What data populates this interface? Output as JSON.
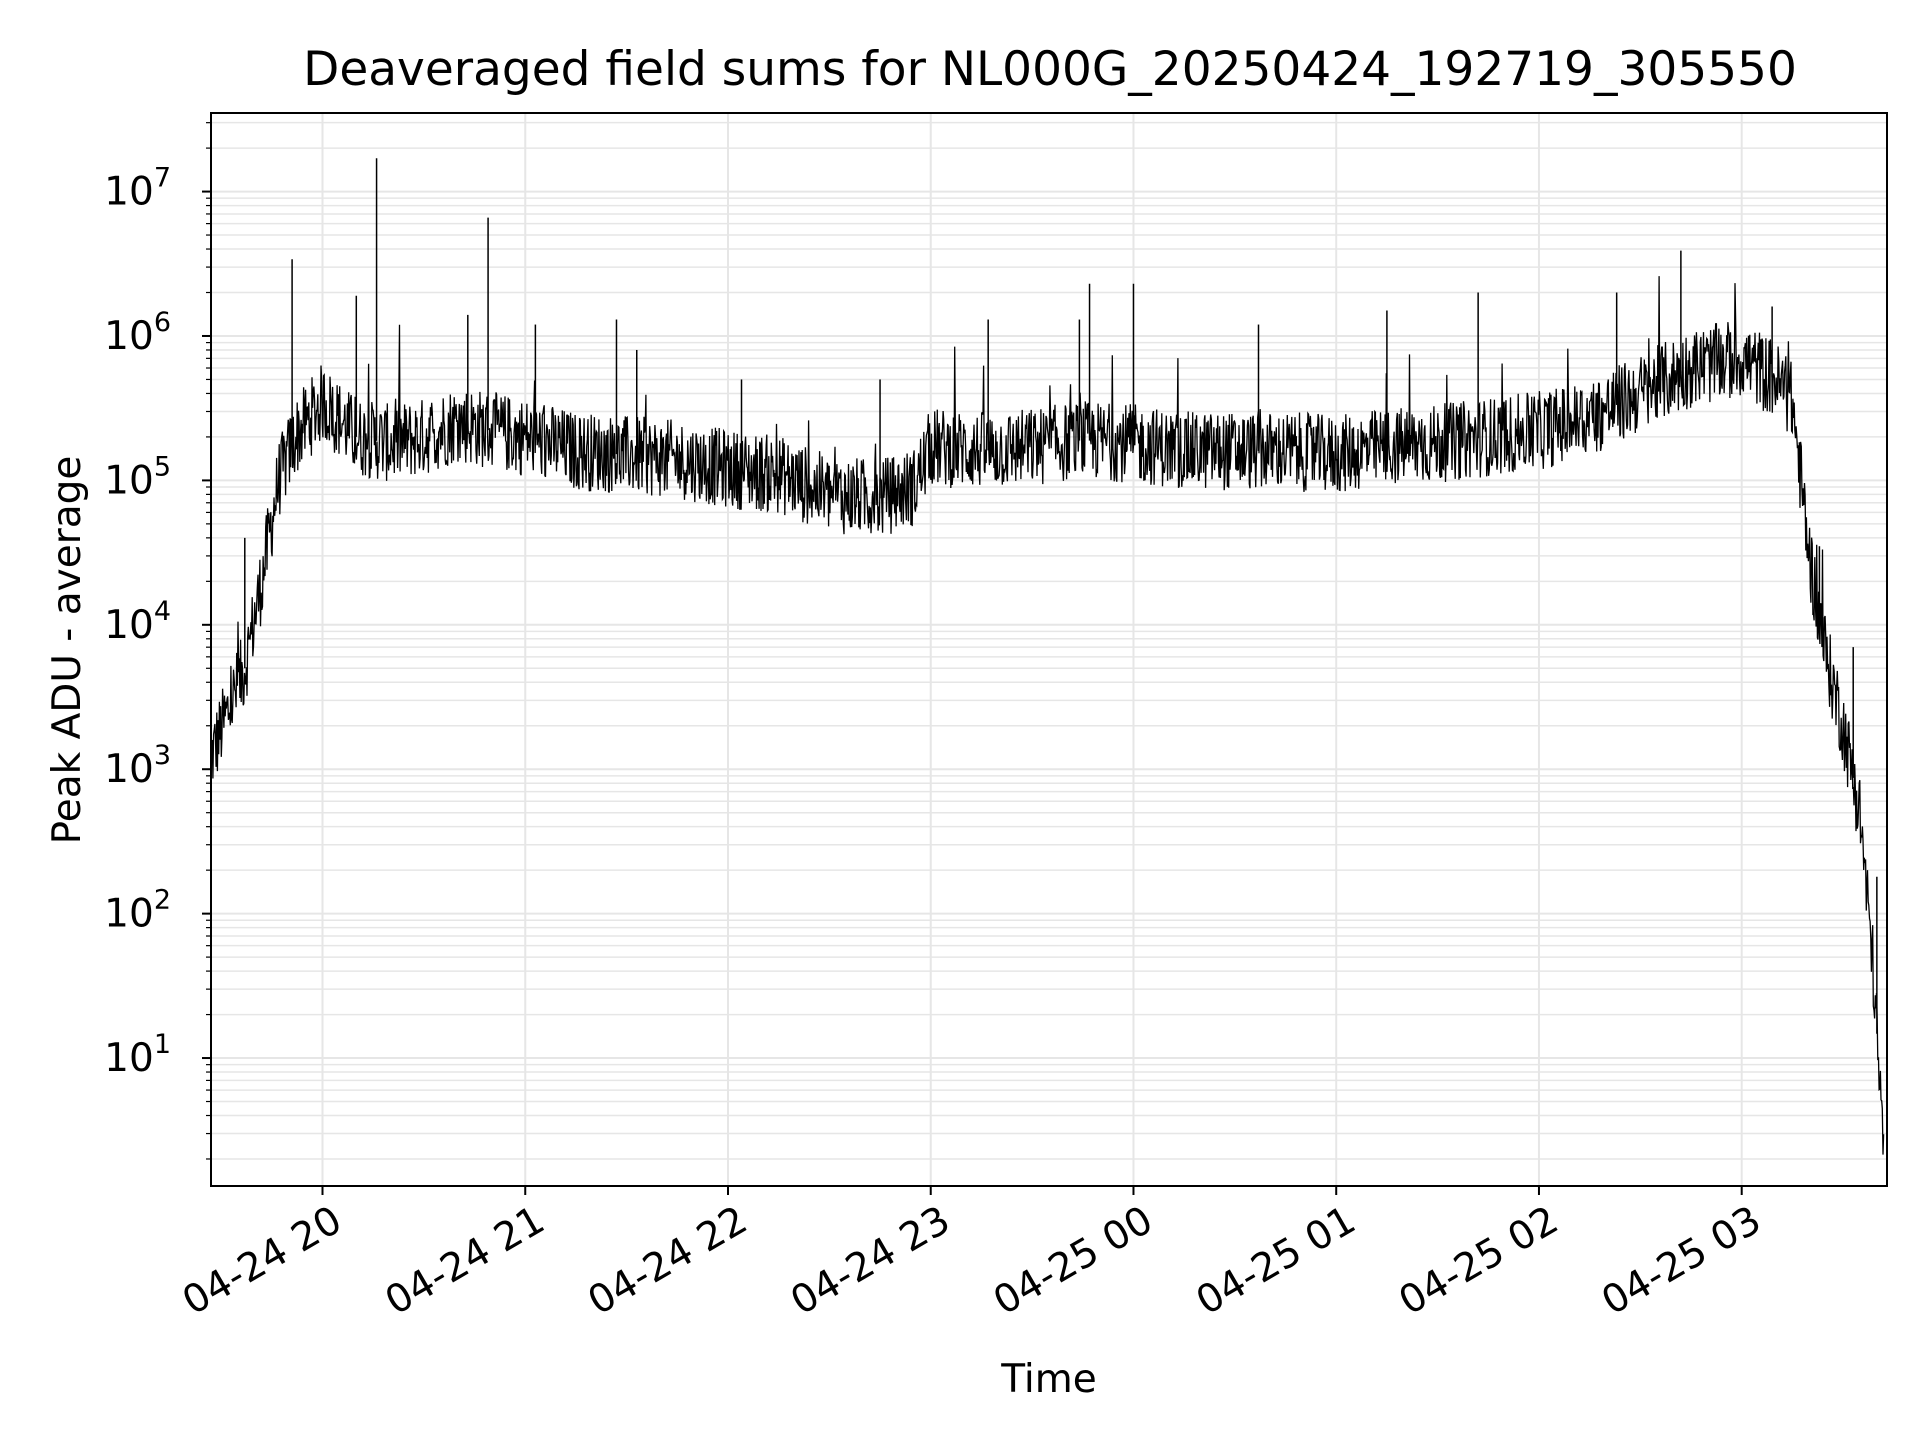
{
  "chart_data": {
    "type": "line",
    "title": "Deaveraged field sums for NL000G_20250424_192719_305550",
    "xlabel": "Time",
    "ylabel": "Peak ADU - average",
    "y_scale": "log",
    "ylim": [
      1.3,
      35000000
    ],
    "xlim": [
      "2025-04-24 19:27:00",
      "2025-04-25 03:43:00"
    ],
    "grid": true,
    "x_tick_labels": [
      "04-24 20",
      "04-24 21",
      "04-24 22",
      "04-24 23",
      "04-25 00",
      "04-25 01",
      "04-25 02",
      "04-25 03"
    ],
    "x_ticks": [
      "2025-04-24 20:00",
      "2025-04-24 21:00",
      "2025-04-24 22:00",
      "2025-04-24 23:00",
      "2025-04-25 00:00",
      "2025-04-25 01:00",
      "2025-04-25 02:00",
      "2025-04-25 03:00"
    ],
    "y_tick_labels": [
      {
        "base": "10",
        "exp": "1",
        "value": 10
      },
      {
        "base": "10",
        "exp": "2",
        "value": 100
      },
      {
        "base": "10",
        "exp": "3",
        "value": 1000
      },
      {
        "base": "10",
        "exp": "4",
        "value": 10000
      },
      {
        "base": "10",
        "exp": "5",
        "value": 100000
      },
      {
        "base": "10",
        "exp": "6",
        "value": 1000000
      },
      {
        "base": "10",
        "exp": "7",
        "value": 10000000
      }
    ],
    "line_color": "#000000",
    "series": [
      {
        "x": [
          "2025-04-24 19:27",
          "2025-04-24 19:32",
          "2025-04-24 19:37",
          "2025-04-24 19:42",
          "2025-04-24 19:47",
          "2025-04-24 19:52",
          "2025-04-24 20:00",
          "2025-04-24 20:10",
          "2025-04-24 20:20",
          "2025-04-24 20:30",
          "2025-04-24 20:40",
          "2025-04-24 20:50",
          "2025-04-24 21:00",
          "2025-04-24 21:15",
          "2025-04-24 21:30",
          "2025-04-24 21:45",
          "2025-04-24 22:00",
          "2025-04-24 22:15",
          "2025-04-24 22:30",
          "2025-04-24 22:45",
          "2025-04-24 22:55",
          "2025-04-24 23:00",
          "2025-04-24 23:15",
          "2025-04-24 23:30",
          "2025-04-24 23:45",
          "2025-04-25 00:00",
          "2025-04-25 00:15",
          "2025-04-25 00:30",
          "2025-04-25 00:45",
          "2025-04-25 01:00",
          "2025-04-25 01:15",
          "2025-04-25 01:30",
          "2025-04-25 01:45",
          "2025-04-25 02:00",
          "2025-04-25 02:15",
          "2025-04-25 02:30",
          "2025-04-25 02:45",
          "2025-04-25 03:00",
          "2025-04-25 03:10",
          "2025-04-25 03:15",
          "2025-04-25 03:20",
          "2025-04-25 03:25",
          "2025-04-25 03:30",
          "2025-04-25 03:35",
          "2025-04-25 03:39",
          "2025-04-25 03:42"
        ],
        "values": [
          1200,
          2500,
          5000,
          20000,
          100000,
          200000,
          350000,
          200000,
          180000,
          200000,
          250000,
          220000,
          200000,
          160000,
          150000,
          140000,
          120000,
          110000,
          80000,
          75000,
          90000,
          170000,
          160000,
          170000,
          190000,
          180000,
          160000,
          160000,
          160000,
          150000,
          170000,
          180000,
          200000,
          220000,
          270000,
          400000,
          600000,
          700000,
          500000,
          350000,
          30000,
          6000,
          2000,
          500,
          40,
          2
        ]
      }
    ],
    "spikes": [
      {
        "x": "2025-04-24 19:37",
        "value": 40000
      },
      {
        "x": "2025-04-24 19:51",
        "value": 3400000
      },
      {
        "x": "2025-04-24 20:10",
        "value": 1900000
      },
      {
        "x": "2025-04-24 20:16",
        "value": 17000000
      },
      {
        "x": "2025-04-24 20:43",
        "value": 1400000
      },
      {
        "x": "2025-04-24 20:49",
        "value": 6600000
      },
      {
        "x": "2025-04-24 21:03",
        "value": 1200000
      },
      {
        "x": "2025-04-24 21:27",
        "value": 1300000
      },
      {
        "x": "2025-04-24 21:33",
        "value": 800000
      },
      {
        "x": "2025-04-24 22:04",
        "value": 500000
      },
      {
        "x": "2025-04-24 22:45",
        "value": 500000
      },
      {
        "x": "2025-04-24 23:17",
        "value": 1300000
      },
      {
        "x": "2025-04-24 23:44",
        "value": 1300000
      },
      {
        "x": "2025-04-24 23:47",
        "value": 2300000
      },
      {
        "x": "2025-04-25 00:00",
        "value": 2300000
      },
      {
        "x": "2025-04-25 00:37",
        "value": 1200000
      },
      {
        "x": "2025-04-25 01:15",
        "value": 1500000
      },
      {
        "x": "2025-04-25 01:42",
        "value": 2000000
      },
      {
        "x": "2025-04-25 02:23",
        "value": 2000000
      },
      {
        "x": "2025-04-25 02:42",
        "value": 3900000
      },
      {
        "x": "2025-04-25 03:09",
        "value": 1600000
      },
      {
        "x": "2025-04-25 03:23",
        "value": 35000
      },
      {
        "x": "2025-04-25 03:33",
        "value": 7000
      },
      {
        "x": "2025-04-25 03:40",
        "value": 180
      }
    ]
  }
}
